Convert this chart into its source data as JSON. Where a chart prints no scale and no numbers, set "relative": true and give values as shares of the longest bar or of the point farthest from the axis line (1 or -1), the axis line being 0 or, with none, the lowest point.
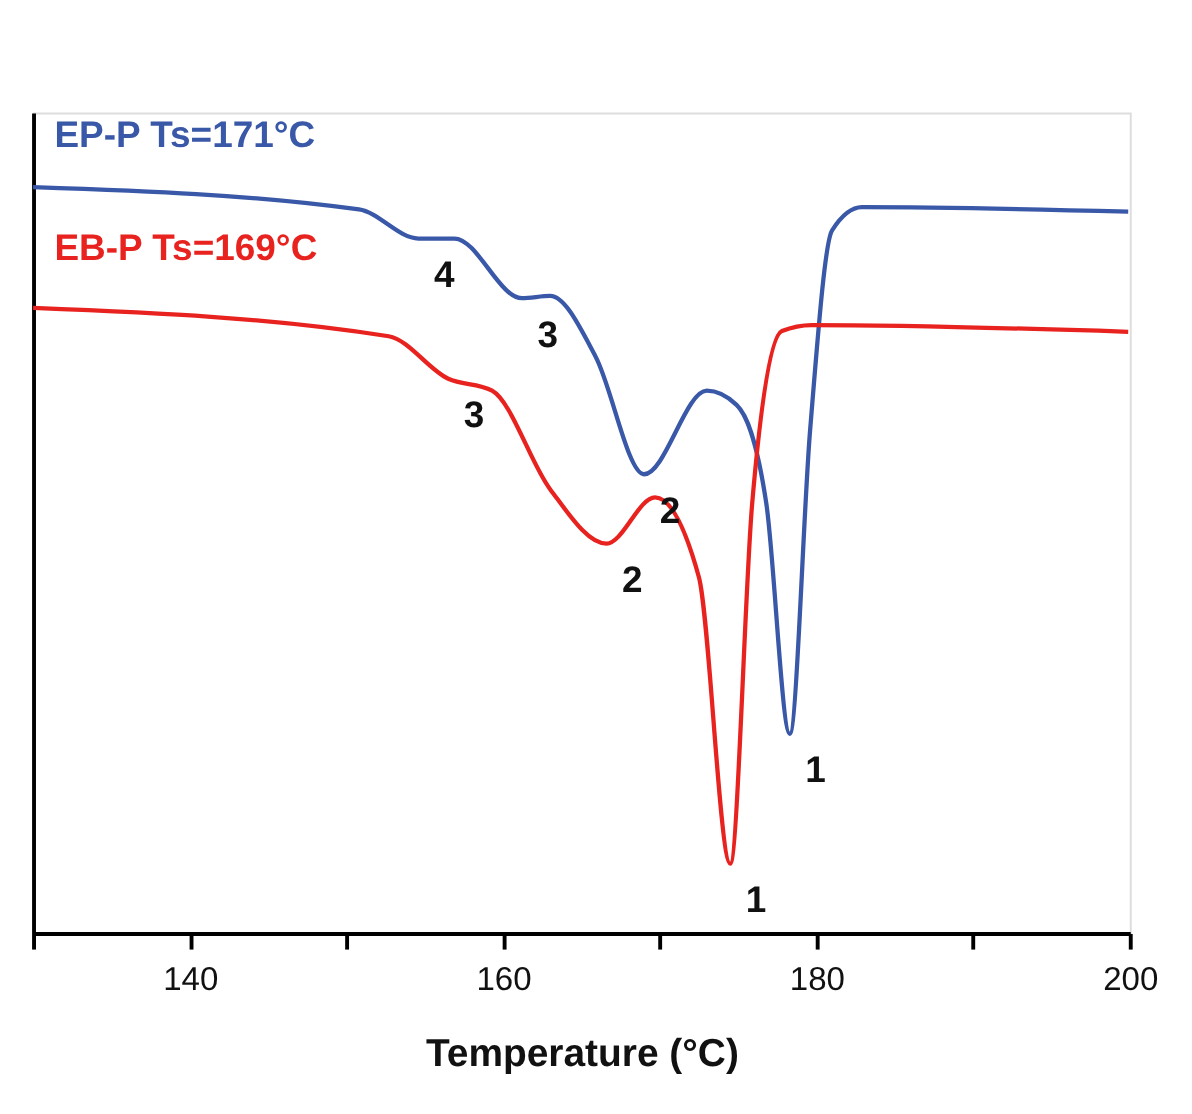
{
  "chart_data": {
    "type": "line",
    "relative": true,
    "xlabel": "Temperature (°C)",
    "xlim": [
      130,
      200
    ],
    "xticks": [
      {
        "value": 130,
        "label": null
      },
      140,
      {
        "value": 150,
        "label": null
      },
      160,
      {
        "value": 170,
        "label": null
      },
      180,
      {
        "value": 190,
        "label": null
      },
      200
    ],
    "tick_labels": "x",
    "grid": false,
    "marker": "none",
    "line_style": "solid",
    "series": [
      {
        "name": "EP-P  Ts=171°C",
        "color": "#3a58a8",
        "x": [
          130,
          150.8,
          154.6,
          156.9,
          161.2,
          163.0,
          165.9,
          169.0,
          173.0,
          174.9,
          176.8,
          178.3,
          179.6,
          181.0,
          182.9,
          199.9
        ],
        "values": [
          1.0,
          0.97,
          0.931,
          0.931,
          0.851,
          0.854,
          0.773,
          0.615,
          0.727,
          0.708,
          0.576,
          0.267,
          0.675,
          0.942,
          0.973,
          0.967
        ]
      },
      {
        "name": "EB-P  Ts=169°C",
        "color": "#e8231f",
        "x": [
          130,
          152.7,
          156.5,
          159.3,
          163.0,
          166.6,
          169.7,
          172.5,
          174.5,
          175.9,
          177.8,
          179.7,
          199.9
        ],
        "values": [
          0.838,
          0.8,
          0.743,
          0.727,
          0.595,
          0.522,
          0.584,
          0.477,
          0.093,
          0.576,
          0.807,
          0.815,
          0.806
        ]
      }
    ],
    "annotations": [
      {
        "text": "4",
        "x": 154.6,
        "y": 0.931
      },
      {
        "text": "3",
        "x": 161.2,
        "y": 0.851
      },
      {
        "text": "2",
        "x": 169.0,
        "y": 0.615
      },
      {
        "text": "1",
        "x": 178.3,
        "y": 0.267
      },
      {
        "text": "3",
        "x": 156.5,
        "y": 0.743
      },
      {
        "text": "2",
        "x": 166.6,
        "y": 0.522
      },
      {
        "text": "1",
        "x": 174.5,
        "y": 0.093
      }
    ]
  }
}
